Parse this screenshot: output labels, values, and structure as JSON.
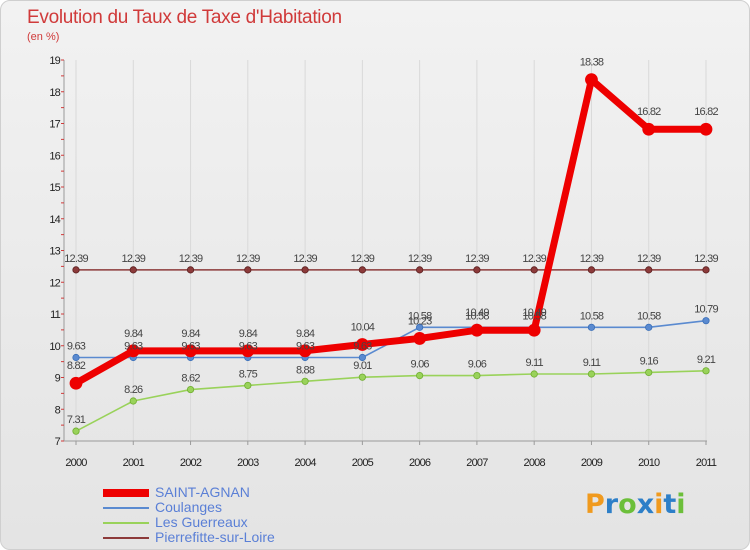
{
  "chart_data": {
    "type": "line",
    "title": "Evolution du Taux de Taxe d'Habitation",
    "subtitle": "(en %)",
    "xlabel": "",
    "ylabel": "",
    "categories": [
      "2000",
      "2001",
      "2002",
      "2003",
      "2004",
      "2005",
      "2006",
      "2007",
      "2008",
      "2009",
      "2010",
      "2011"
    ],
    "ylim": [
      7,
      19
    ],
    "yticks": [
      "7",
      "8",
      "9",
      "10",
      "11",
      "12",
      "13",
      "14",
      "15",
      "16",
      "17",
      "18",
      "19"
    ],
    "series": [
      {
        "name": "Pierrefitte-sur-Loire",
        "color": "#8c3a3a",
        "values": [
          12.39,
          12.39,
          12.39,
          12.39,
          12.39,
          12.39,
          12.39,
          12.39,
          12.39,
          12.39,
          12.39,
          12.39
        ],
        "labels": [
          "12.39",
          "12.39",
          "12.39",
          "12.39",
          "12.39",
          "12.39",
          "12.39",
          "12.39",
          "12.39",
          "12.39",
          "12.39",
          "12.39"
        ]
      },
      {
        "name": "Les Guerreaux",
        "color": "#99d25a",
        "values": [
          7.31,
          8.26,
          8.62,
          8.75,
          8.88,
          9.01,
          9.06,
          9.06,
          9.11,
          9.11,
          9.16,
          9.21
        ],
        "labels": [
          "7.31",
          "8.26",
          "8.62",
          "8.75",
          "8.88",
          "9.01",
          "9.06",
          "9.06",
          "9.11",
          "9.11",
          "9.16",
          "9.21"
        ]
      },
      {
        "name": "Coulanges",
        "color": "#5a8ad0",
        "values": [
          9.63,
          9.63,
          9.63,
          9.63,
          9.63,
          9.63,
          10.58,
          10.58,
          10.58,
          10.58,
          10.58,
          10.79
        ],
        "labels": [
          "9.63",
          "9.63",
          "9.63",
          "9.63",
          "9.63",
          "9.63",
          "10.58",
          "10.58",
          "10.58",
          "10.58",
          "10.58",
          "10.79"
        ]
      },
      {
        "name": "SAINT-AGNAN",
        "color": "#ee0000",
        "values": [
          8.82,
          9.84,
          9.84,
          9.84,
          9.84,
          10.04,
          10.23,
          10.49,
          10.49,
          18.38,
          16.82,
          16.82
        ],
        "labels": [
          "8.82",
          "9.84",
          "9.84",
          "9.84",
          "9.84",
          "10.04",
          "10.23",
          "10.49",
          "10.49",
          "18.38",
          "16.82",
          "16.82"
        ]
      }
    ],
    "legend": [
      "SAINT-AGNAN",
      "Coulanges",
      "Les Guerreaux",
      "Pierrefitte-sur-Loire"
    ]
  },
  "logo": {
    "letters": [
      "P",
      "r",
      "o",
      "x",
      "i",
      "t",
      "i"
    ],
    "colors": [
      "#f09a1e",
      "#2d7fc8",
      "#6cbf3a",
      "#2d7fc8",
      "#f09a1e",
      "#2d7fc8",
      "#6cbf3a"
    ]
  }
}
